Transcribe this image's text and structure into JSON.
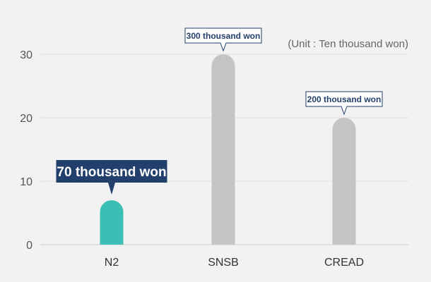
{
  "chart_data": {
    "type": "bar",
    "categories": [
      "N2",
      "SNSB",
      "CREAD"
    ],
    "values": [
      7,
      30,
      20
    ],
    "unit_note": "(Unit : Ten thousand won)",
    "ylim": [
      0,
      30
    ],
    "yticks": [
      "0",
      "10",
      "20",
      "30"
    ],
    "data_labels": [
      "70 thousand won",
      "300 thousand won",
      "200 thousand won"
    ],
    "highlight_index": 0,
    "grid": true,
    "colors": {
      "highlight_bar": "#3bbfb4",
      "bar": "#c4c4c4",
      "highlight_label_bg": "#233f6b",
      "label_border": "#233f6b",
      "label_bg": "#ffffff",
      "text": "#333333",
      "axis_text": "#555555",
      "grid": "#dddddd"
    }
  }
}
